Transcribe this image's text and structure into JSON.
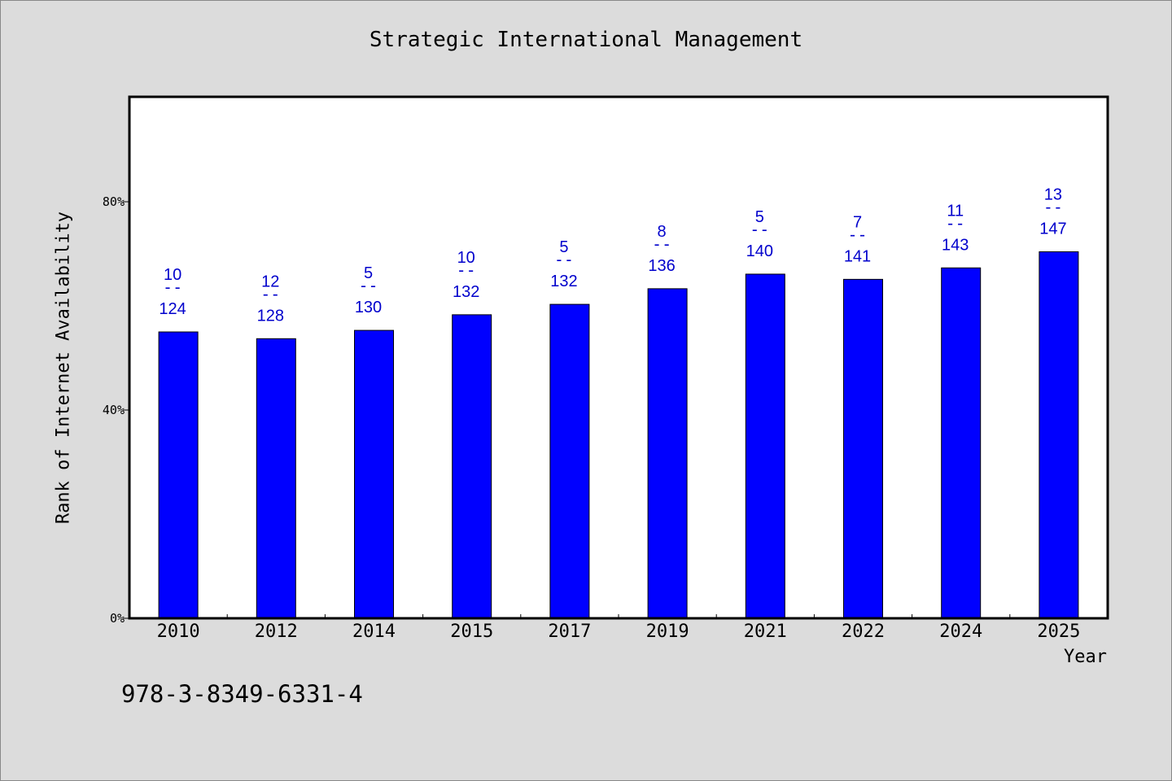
{
  "chart_data": {
    "type": "bar",
    "title": "Strategic International Management",
    "xlabel": "Year",
    "ylabel": "Rank of Internet Availability",
    "categories": [
      "2010",
      "2012",
      "2014",
      "2015",
      "2017",
      "2019",
      "2021",
      "2022",
      "2024",
      "2025"
    ],
    "values": [
      55,
      53.7,
      55.3,
      58.3,
      60.3,
      63.3,
      66.1,
      65.1,
      67.3,
      70.4
    ],
    "label_top": [
      "10",
      "12",
      "5",
      "10",
      "5",
      "8",
      "5",
      "7",
      "11",
      "13"
    ],
    "label_sep": "--",
    "label_bottom": [
      "124",
      "128",
      "130",
      "132",
      "132",
      "136",
      "140",
      "141",
      "143",
      "147"
    ],
    "y_ticks": [
      0,
      40,
      80
    ],
    "y_tick_labels": [
      "0%",
      "40%",
      "80%"
    ],
    "ylim": [
      0,
      100
    ],
    "grid": false,
    "colors": {
      "bar": "#0000ff",
      "bar_label": "#0000cc",
      "background": "#dcdcdc",
      "plot_background": "#ffffff"
    }
  },
  "footer": {
    "isbn": "978-3-8349-6331-4"
  }
}
